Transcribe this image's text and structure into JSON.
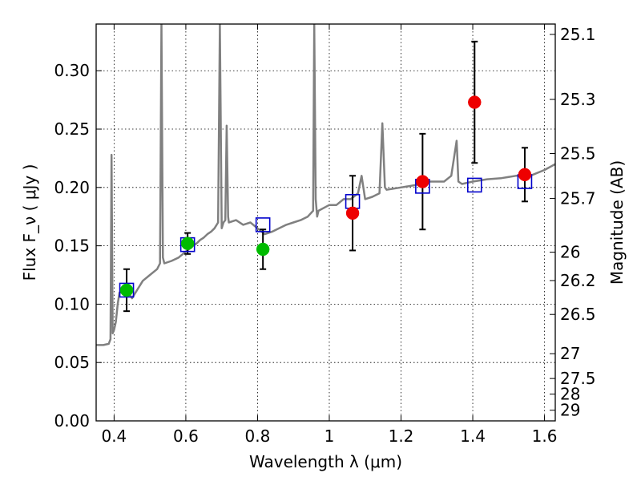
{
  "chart_data": {
    "type": "scatter",
    "xlabel": "Wavelength  λ (μm)",
    "ylabel": "Flux  F_ν  ( μJy )",
    "ylabel_right": "Magnitude (AB)",
    "xlim": [
      0.35,
      1.63
    ],
    "ylim": [
      0.0,
      0.34
    ],
    "grid": true,
    "x_ticks": [
      {
        "value": 0.4,
        "label": "0.4"
      },
      {
        "value": 0.6,
        "label": "0.6"
      },
      {
        "value": 0.8,
        "label": "0.8"
      },
      {
        "value": 1.0,
        "label": "1"
      },
      {
        "value": 1.2,
        "label": "1.2"
      },
      {
        "value": 1.4,
        "label": "1.4"
      },
      {
        "value": 1.6,
        "label": "1.6"
      }
    ],
    "y_ticks": [
      {
        "value": 0.0,
        "label": "0.00"
      },
      {
        "value": 0.05,
        "label": "0.05"
      },
      {
        "value": 0.1,
        "label": "0.10"
      },
      {
        "value": 0.15,
        "label": "0.15"
      },
      {
        "value": 0.2,
        "label": "0.20"
      },
      {
        "value": 0.25,
        "label": "0.25"
      },
      {
        "value": 0.3,
        "label": "0.30"
      }
    ],
    "right_ticks": [
      {
        "mag": 25.1,
        "label": "25.1"
      },
      {
        "mag": 25.3,
        "label": "25.3"
      },
      {
        "mag": 25.5,
        "label": "25.5"
      },
      {
        "mag": 25.7,
        "label": "25.7"
      },
      {
        "mag": 26.0,
        "label": "26"
      },
      {
        "mag": 26.2,
        "label": "26.2"
      },
      {
        "mag": 26.5,
        "label": "26.5"
      },
      {
        "mag": 27.0,
        "label": "27"
      },
      {
        "mag": 27.5,
        "label": "27.5"
      },
      {
        "mag": 28.0,
        "label": "28"
      },
      {
        "mag": 29.0,
        "label": "29"
      }
    ],
    "series": [
      {
        "kind": "spectrum",
        "color": "#808080",
        "x": [
          0.35,
          0.37,
          0.385,
          0.39,
          0.393,
          0.396,
          0.4,
          0.405,
          0.41,
          0.415,
          0.42,
          0.43,
          0.44,
          0.45,
          0.46,
          0.47,
          0.48,
          0.5,
          0.52,
          0.528,
          0.532,
          0.536,
          0.54,
          0.56,
          0.58,
          0.6,
          0.62,
          0.63,
          0.64,
          0.65,
          0.66,
          0.67,
          0.68,
          0.69,
          0.695,
          0.7,
          0.705,
          0.71,
          0.714,
          0.718,
          0.72,
          0.74,
          0.76,
          0.78,
          0.8,
          0.82,
          0.84,
          0.86,
          0.88,
          0.9,
          0.92,
          0.94,
          0.955,
          0.958,
          0.962,
          0.966,
          0.97,
          1.0,
          1.02,
          1.04,
          1.06,
          1.08,
          1.09,
          1.1,
          1.12,
          1.14,
          1.148,
          1.155,
          1.16,
          1.2,
          1.24,
          1.28,
          1.32,
          1.34,
          1.355,
          1.36,
          1.37,
          1.4,
          1.44,
          1.48,
          1.52,
          1.56,
          1.6,
          1.63
        ],
        "values": [
          0.065,
          0.065,
          0.066,
          0.07,
          0.228,
          0.075,
          0.078,
          0.085,
          0.1,
          0.11,
          0.11,
          0.115,
          0.11,
          0.105,
          0.11,
          0.115,
          0.12,
          0.125,
          0.13,
          0.135,
          0.34,
          0.14,
          0.135,
          0.137,
          0.14,
          0.145,
          0.15,
          0.152,
          0.155,
          0.157,
          0.16,
          0.162,
          0.165,
          0.17,
          0.34,
          0.165,
          0.17,
          0.172,
          0.253,
          0.175,
          0.17,
          0.172,
          0.168,
          0.17,
          0.165,
          0.16,
          0.162,
          0.165,
          0.168,
          0.17,
          0.172,
          0.175,
          0.18,
          0.34,
          0.19,
          0.175,
          0.18,
          0.185,
          0.185,
          0.19,
          0.19,
          0.195,
          0.21,
          0.19,
          0.192,
          0.195,
          0.255,
          0.2,
          0.198,
          0.2,
          0.202,
          0.205,
          0.205,
          0.21,
          0.24,
          0.205,
          0.203,
          0.205,
          0.207,
          0.208,
          0.21,
          0.21,
          0.215,
          0.22
        ]
      },
      {
        "kind": "model_photometry",
        "marker": "open-square",
        "color": "#0000cc",
        "x": [
          0.435,
          0.605,
          0.815,
          1.065,
          1.26,
          1.405,
          1.545
        ],
        "values": [
          0.112,
          0.151,
          0.168,
          0.188,
          0.201,
          0.202,
          0.205
        ]
      },
      {
        "kind": "observed",
        "marker": "filled-circle",
        "color": "#00bb00",
        "x": [
          0.435,
          0.605,
          0.815
        ],
        "values": [
          0.112,
          0.152,
          0.147
        ],
        "err": [
          0.018,
          0.009,
          0.017
        ]
      },
      {
        "kind": "observed",
        "marker": "filled-circle",
        "color": "#ee0000",
        "x": [
          1.065,
          1.26,
          1.405,
          1.545
        ],
        "values": [
          0.178,
          0.205,
          0.273,
          0.211
        ],
        "err": [
          0.032,
          0.041,
          0.052,
          0.023
        ]
      }
    ]
  }
}
